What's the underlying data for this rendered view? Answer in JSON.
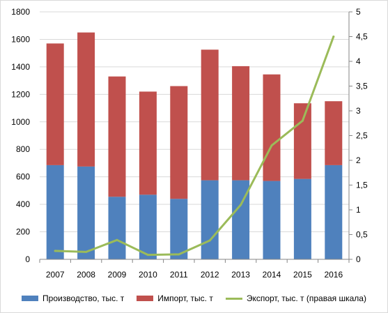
{
  "chart_data": {
    "type": "bar",
    "stacked": true,
    "categories": [
      "2007",
      "2008",
      "2009",
      "2010",
      "2011",
      "2012",
      "2013",
      "2014",
      "2015",
      "2016"
    ],
    "series": [
      {
        "name": "Производство, тыс. т",
        "axis": "left",
        "kind": "bar",
        "color": "#4f81bd",
        "values": [
          685,
          675,
          455,
          470,
          440,
          575,
          575,
          570,
          585,
          685
        ]
      },
      {
        "name": "Импорт, тыс. т",
        "axis": "left",
        "kind": "bar",
        "color": "#c0504d",
        "values": [
          885,
          975,
          875,
          750,
          820,
          950,
          830,
          775,
          550,
          465
        ]
      },
      {
        "name": "Экспорт, тыс. т (правая шкала)",
        "axis": "right",
        "kind": "line",
        "color": "#9bbb59",
        "values": [
          0.17,
          0.15,
          0.39,
          0.09,
          0.1,
          0.38,
          1.1,
          2.3,
          2.8,
          4.5
        ]
      }
    ],
    "y_left": {
      "min": 0,
      "max": 1800,
      "ticks": [
        "0",
        "200",
        "400",
        "600",
        "800",
        "1000",
        "1200",
        "1400",
        "1600",
        "1800"
      ]
    },
    "y_right": {
      "min": 0,
      "max": 5,
      "ticks": [
        "0",
        "0,5",
        "1",
        "1,5",
        "2",
        "2,5",
        "3",
        "3,5",
        "4",
        "4,5",
        "5"
      ]
    },
    "grid": "horizontal",
    "legend_position": "bottom",
    "title": "",
    "xlabel": "",
    "ylabel": ""
  }
}
